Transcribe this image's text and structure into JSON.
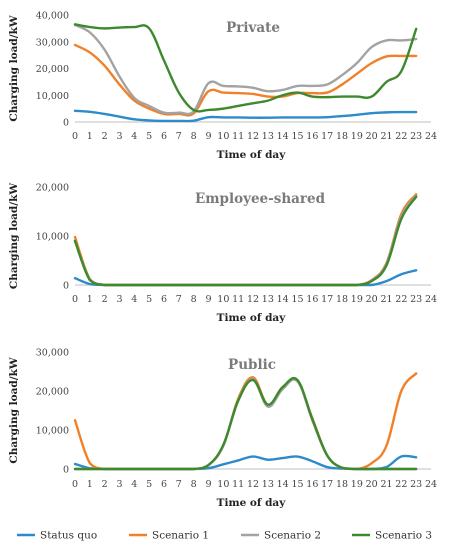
{
  "colors": {
    "Status quo": "#2E8BC9",
    "Scenario 1": "#F28028",
    "Scenario 2": "#A3A3A3",
    "Scenario 3": "#3D8A2E",
    "axis": "#bfbfbf"
  },
  "legend": [
    "Status quo",
    "Scenario 1",
    "Scenario 2",
    "Scenario 3"
  ],
  "chart_data": [
    {
      "type": "line",
      "title": "Private",
      "xlabel": "Time of day",
      "ylabel": "Charging load/kW",
      "xlim": [
        0,
        24
      ],
      "ylim": [
        0,
        40000
      ],
      "xticks": [
        "0",
        "1",
        "2",
        "3",
        "4",
        "5",
        "6",
        "7",
        "8",
        "9",
        "10",
        "11",
        "12",
        "13",
        "14",
        "15",
        "16",
        "17",
        "18",
        "19",
        "20",
        "21",
        "22",
        "23",
        "24"
      ],
      "yticks": [
        "0",
        "10,000",
        "20,000",
        "30,000",
        "40,000"
      ],
      "x": [
        0,
        1,
        2,
        3,
        4,
        5,
        6,
        7,
        8,
        9,
        10,
        11,
        12,
        13,
        14,
        15,
        16,
        17,
        18,
        19,
        20,
        21,
        22,
        23
      ],
      "series": [
        {
          "name": "Status quo",
          "values": [
            4200,
            3800,
            3000,
            2000,
            1000,
            600,
            400,
            400,
            500,
            1800,
            1700,
            1700,
            1600,
            1600,
            1700,
            1700,
            1700,
            1800,
            2200,
            2700,
            3300,
            3600,
            3700,
            3700
          ]
        },
        {
          "name": "Scenario 1",
          "values": [
            28800,
            26000,
            21000,
            14000,
            8000,
            5000,
            3000,
            3000,
            3200,
            11500,
            11000,
            10800,
            10500,
            9500,
            9500,
            10800,
            10800,
            11000,
            14000,
            18000,
            22000,
            24500,
            24700,
            24700
          ]
        },
        {
          "name": "Scenario 2",
          "values": [
            36300,
            33500,
            27000,
            17000,
            9000,
            6000,
            3500,
            3500,
            4000,
            14500,
            13500,
            13300,
            12800,
            11500,
            12000,
            13500,
            13500,
            14000,
            17500,
            22000,
            28000,
            30500,
            30500,
            31000
          ]
        },
        {
          "name": "Scenario 3",
          "values": [
            36500,
            35500,
            35000,
            35300,
            35500,
            35000,
            23000,
            11000,
            4500,
            4500,
            5000,
            6000,
            7000,
            8000,
            10000,
            11000,
            9500,
            9300,
            9500,
            9500,
            9500,
            15000,
            19000,
            34800
          ]
        }
      ]
    },
    {
      "type": "line",
      "title": "Employee-shared",
      "xlabel": "Time of day",
      "ylabel": "Charging load/kW",
      "xlim": [
        0,
        24
      ],
      "ylim": [
        0,
        20000
      ],
      "xticks": [
        "0",
        "1",
        "2",
        "3",
        "4",
        "5",
        "6",
        "7",
        "8",
        "9",
        "10",
        "11",
        "12",
        "13",
        "14",
        "15",
        "16",
        "17",
        "18",
        "19",
        "20",
        "21",
        "22",
        "23",
        "24"
      ],
      "yticks": [
        "0",
        "10,000",
        "20,000"
      ],
      "x": [
        0,
        1,
        2,
        3,
        4,
        5,
        6,
        7,
        8,
        9,
        10,
        11,
        12,
        13,
        14,
        15,
        16,
        17,
        18,
        19,
        20,
        21,
        22,
        23
      ],
      "series": [
        {
          "name": "Status quo",
          "values": [
            1400,
            200,
            0,
            0,
            0,
            0,
            0,
            0,
            0,
            0,
            0,
            0,
            0,
            0,
            0,
            0,
            0,
            0,
            0,
            0,
            0,
            800,
            2200,
            3000
          ]
        },
        {
          "name": "Scenario 1",
          "values": [
            9800,
            1200,
            0,
            0,
            0,
            0,
            0,
            0,
            0,
            0,
            0,
            0,
            0,
            0,
            0,
            0,
            0,
            0,
            0,
            0,
            1000,
            4500,
            14500,
            18500
          ]
        },
        {
          "name": "Scenario 2",
          "values": [
            9000,
            1100,
            0,
            0,
            0,
            0,
            0,
            0,
            0,
            0,
            0,
            0,
            0,
            0,
            0,
            0,
            0,
            0,
            0,
            0,
            900,
            4300,
            14000,
            18200
          ]
        },
        {
          "name": "Scenario 3",
          "values": [
            9000,
            1000,
            0,
            0,
            0,
            0,
            0,
            0,
            0,
            0,
            0,
            0,
            0,
            0,
            0,
            0,
            0,
            0,
            0,
            0,
            800,
            4000,
            13500,
            18000
          ]
        }
      ]
    },
    {
      "type": "line",
      "title": "Public",
      "xlabel": "Time of day",
      "ylabel": "Charging load/kW",
      "xlim": [
        0,
        24
      ],
      "ylim": [
        0,
        30000
      ],
      "xticks": [
        "0",
        "1",
        "2",
        "3",
        "4",
        "5",
        "6",
        "7",
        "8",
        "9",
        "10",
        "11",
        "12",
        "13",
        "14",
        "15",
        "16",
        "17",
        "18",
        "19",
        "20",
        "21",
        "22",
        "23",
        "24"
      ],
      "yticks": [
        "0",
        "10,000",
        "20,000",
        "30,000"
      ],
      "x": [
        0,
        1,
        2,
        3,
        4,
        5,
        6,
        7,
        8,
        9,
        10,
        11,
        12,
        13,
        14,
        15,
        16,
        17,
        18,
        19,
        20,
        21,
        22,
        23
      ],
      "series": [
        {
          "name": "Status quo",
          "values": [
            1300,
            200,
            0,
            0,
            0,
            0,
            0,
            0,
            0,
            200,
            1200,
            2200,
            3200,
            2400,
            2800,
            3200,
            2000,
            500,
            100,
            0,
            0,
            500,
            3200,
            3000
          ]
        },
        {
          "name": "Scenario 1",
          "values": [
            12500,
            1500,
            0,
            0,
            0,
            0,
            0,
            0,
            0,
            1000,
            6000,
            18000,
            23500,
            16500,
            21000,
            22500,
            13000,
            3500,
            300,
            0,
            1500,
            6000,
            20000,
            24500
          ]
        },
        {
          "name": "Scenario 2",
          "values": [
            0,
            0,
            0,
            0,
            0,
            0,
            0,
            0,
            0,
            1000,
            6000,
            17500,
            23000,
            16000,
            20500,
            22500,
            12500,
            3500,
            300,
            0,
            0,
            0,
            0,
            0
          ]
        },
        {
          "name": "Scenario 3",
          "values": [
            0,
            0,
            0,
            0,
            0,
            0,
            0,
            0,
            0,
            1000,
            6200,
            17500,
            22800,
            16500,
            21000,
            22800,
            12800,
            3500,
            300,
            0,
            0,
            0,
            0,
            0
          ]
        }
      ]
    }
  ]
}
